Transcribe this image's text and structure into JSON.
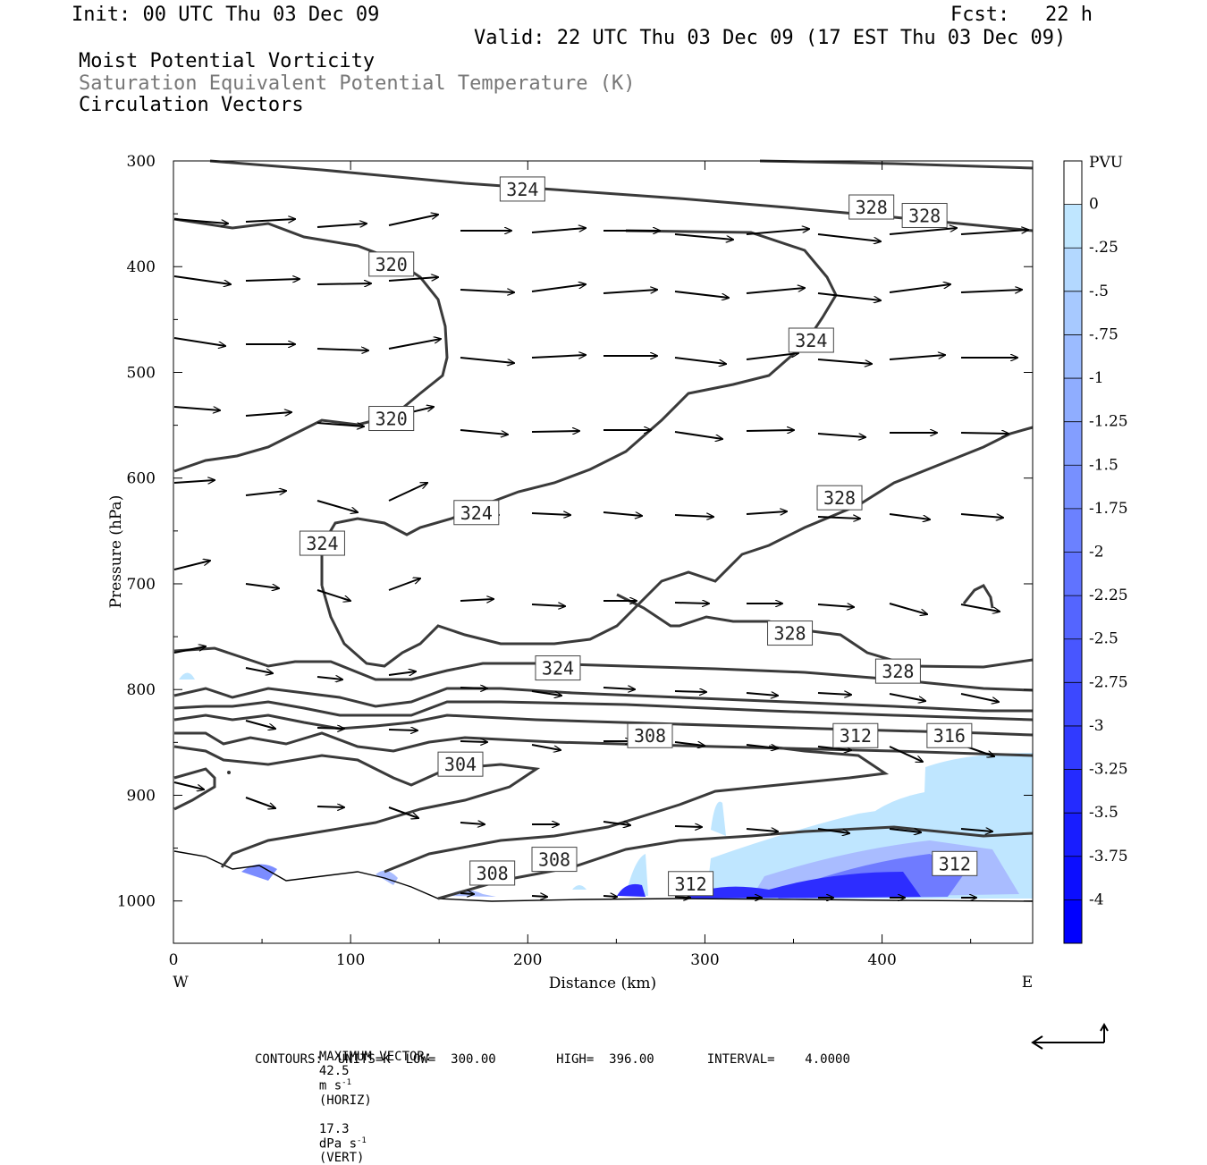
{
  "header": {
    "init": "Init: 00 UTC Thu 03 Dec 09",
    "fcst": "Fcst:   22 h",
    "valid": "Valid: 22 UTC Thu 03 Dec 09 (17 EST Thu 03 Dec 09)",
    "fields": [
      "Moist Potential Vorticity",
      "Saturation Equivalent Potential Temperature (K)",
      "Circulation Vectors"
    ]
  },
  "footer": {
    "max_vector_label": "MAXIMUM VECTOR:",
    "horiz_value": "42.5",
    "horiz_unit": "m s",
    "horiz_exp": "-1",
    "horiz_tag": "(HORIZ)",
    "vert_value": "17.3",
    "vert_unit": "dPa s",
    "vert_exp": "-1",
    "vert_tag": "(VERT)",
    "contours": "CONTOURS:  UNITS=K  LOW=  300.00        HIGH=  396.00       INTERVAL=    4.0000"
  },
  "colors": {
    "contour": "#3a3a3a",
    "arrow": "#000000",
    "pv_light": "#bfe6ff",
    "pv_mid": "#8899ff",
    "pv_strong": "#1a1aff"
  },
  "chart_data": {
    "type": "cross-section",
    "xlabel": "Distance (km)",
    "ylabel": "Pressure (hPa)",
    "xlim": [
      0,
      485
    ],
    "ylim": [
      1040,
      300
    ],
    "x_ticks": [
      0,
      100,
      200,
      300,
      400
    ],
    "y_ticks": [
      300,
      400,
      500,
      600,
      700,
      800,
      900,
      1000
    ],
    "x_end_labels": {
      "left": "W",
      "right": "E"
    },
    "grid": false,
    "contour_labels": [
      {
        "text": "324",
        "x": 197,
        "p": 327
      },
      {
        "text": "328",
        "x": 394,
        "p": 344
      },
      {
        "text": "328",
        "x": 424,
        "p": 352
      },
      {
        "text": "320",
        "x": 123,
        "p": 398
      },
      {
        "text": "324",
        "x": 360,
        "p": 470
      },
      {
        "text": "320",
        "x": 123,
        "p": 544
      },
      {
        "text": "324",
        "x": 171,
        "p": 633
      },
      {
        "text": "328",
        "x": 376,
        "p": 619
      },
      {
        "text": "324",
        "x": 84,
        "p": 662
      },
      {
        "text": "328",
        "x": 348,
        "p": 747
      },
      {
        "text": "324",
        "x": 217,
        "p": 780
      },
      {
        "text": "328",
        "x": 409,
        "p": 783
      },
      {
        "text": "308",
        "x": 269,
        "p": 844
      },
      {
        "text": "312",
        "x": 385,
        "p": 844
      },
      {
        "text": "316",
        "x": 438,
        "p": 844
      },
      {
        "text": "304",
        "x": 162,
        "p": 871
      },
      {
        "text": "308",
        "x": 215,
        "p": 961
      },
      {
        "text": "308",
        "x": 180,
        "p": 974
      },
      {
        "text": "312",
        "x": 292,
        "p": 984
      },
      {
        "text": "312",
        "x": 441,
        "p": 965
      }
    ],
    "colorbar": {
      "units": "PVU",
      "labels": [
        "0",
        "-.25",
        "-.5",
        "-.75",
        "-1",
        "-1.25",
        "-1.5",
        "-1.75",
        "-2",
        "-2.25",
        "-2.5",
        "-2.75",
        "-3",
        "-3.25",
        "-3.5",
        "-3.75",
        "-4"
      ],
      "top_color": "#ffffff",
      "start_color": "#bfe6ff",
      "end_color": "#0000ff"
    }
  }
}
